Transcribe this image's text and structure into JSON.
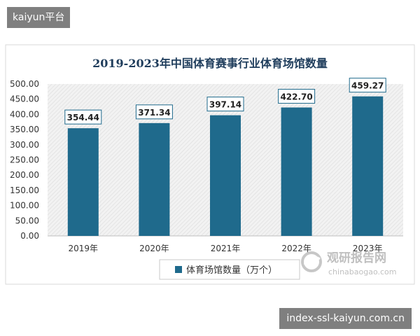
{
  "overlay": {
    "top_tag": "kaiyun平台",
    "bottom_tag": "index-ssl-kaiyun.com.cn"
  },
  "watermark": {
    "brand_cn": "观研报告网",
    "brand_url": "chinabaogao.com",
    "icon": "swirl-logo-icon"
  },
  "chart_data": {
    "type": "bar",
    "title": "2019-2023年中国体育赛事行业体育场馆数量",
    "categories": [
      "2019年",
      "2020年",
      "2021年",
      "2022年",
      "2023年"
    ],
    "series": [
      {
        "name": "体育场馆数量（万个）",
        "values": [
          354.44,
          371.34,
          397.14,
          422.7,
          459.27
        ],
        "labels": [
          "354.44",
          "371.34",
          "397.14",
          "422.70",
          "459.27"
        ],
        "color": "#1f6a8c"
      }
    ],
    "ylim": [
      0,
      500
    ],
    "yticks": [
      "0.00",
      "50.00",
      "100.00",
      "150.00",
      "200.00",
      "250.00",
      "300.00",
      "350.00",
      "400.00",
      "450.00",
      "500.00"
    ],
    "xlabel": "",
    "ylabel": "",
    "legend_position": "bottom",
    "plot_background": "hatched-gray",
    "title_color": "#1f3d5c"
  }
}
